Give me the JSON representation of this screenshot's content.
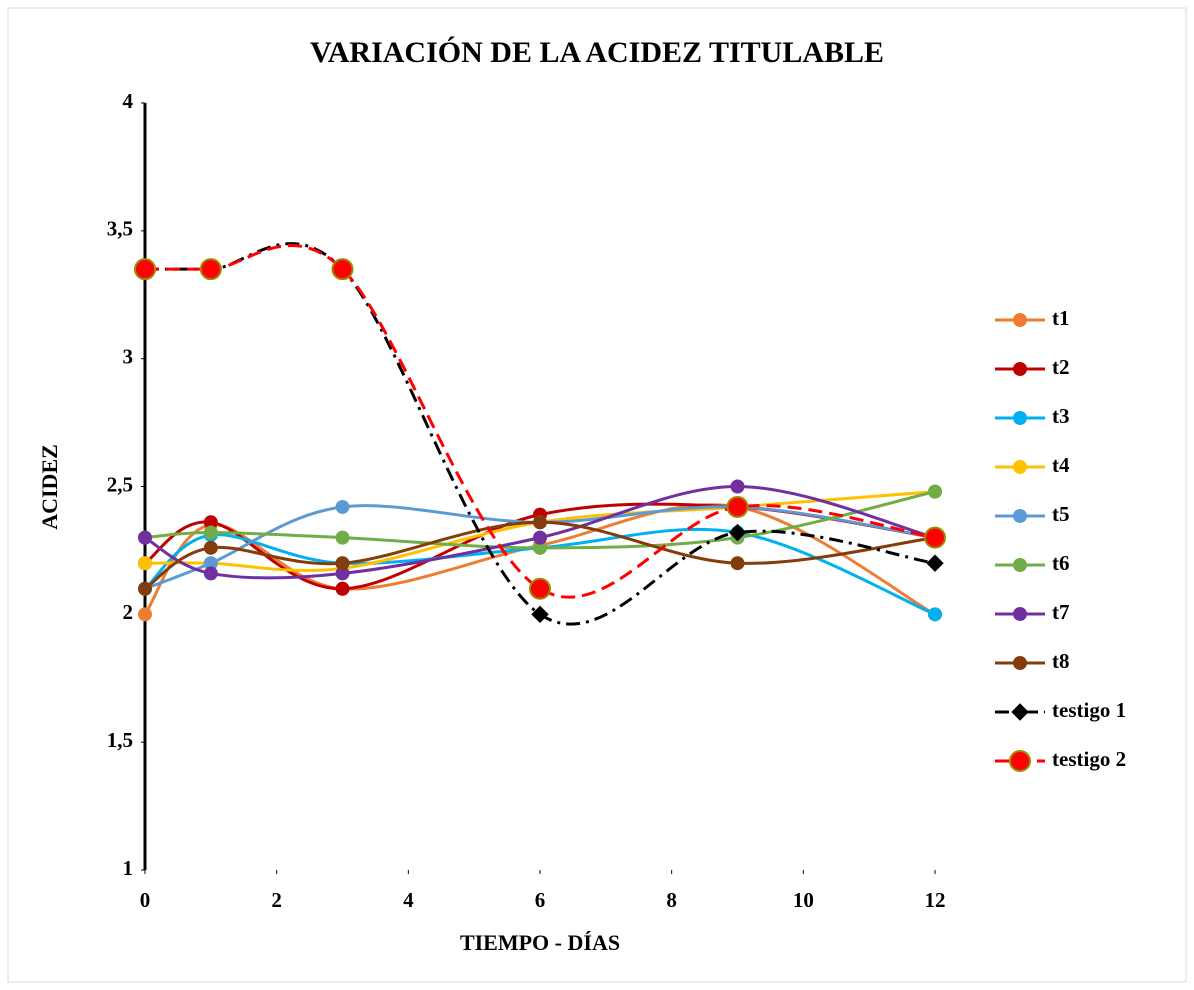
{
  "chart_data": {
    "type": "line",
    "title": "VARIACIÓN DE LA ACIDEZ TITULABLE",
    "xlabel": "TIEMPO - DÍAS",
    "ylabel": "ACIDEZ",
    "x": [
      0,
      1,
      3,
      6,
      9,
      12
    ],
    "xlim": [
      0,
      12
    ],
    "xticks": [
      0,
      2,
      4,
      6,
      8,
      10,
      12
    ],
    "ylim": [
      1,
      4
    ],
    "yticks": [
      1,
      {
        "value": 1.5,
        "label": "1,5"
      },
      2,
      {
        "value": 2.5,
        "label": "2,5"
      },
      3,
      {
        "value": 3.5,
        "label": "3,5"
      },
      4
    ],
    "smooth": true,
    "legend": "right",
    "series": [
      {
        "name": "t1",
        "color": "#ED7D31",
        "marker": "circle",
        "dash": "solid",
        "values": [
          2.0,
          2.35,
          2.1,
          2.27,
          2.42,
          2.0
        ]
      },
      {
        "name": "t2",
        "color": "#C00000",
        "marker": "circle",
        "dash": "solid",
        "values": [
          2.2,
          2.36,
          2.1,
          2.39,
          2.42,
          2.3
        ]
      },
      {
        "name": "t3",
        "color": "#00B0F0",
        "marker": "circle",
        "dash": "solid",
        "values": [
          2.1,
          2.31,
          2.2,
          2.26,
          2.32,
          2.0
        ]
      },
      {
        "name": "t4",
        "color": "#FFC000",
        "marker": "circle",
        "dash": "solid",
        "values": [
          2.2,
          2.2,
          2.18,
          2.36,
          2.42,
          2.48
        ]
      },
      {
        "name": "t5",
        "color": "#5B9BD5",
        "marker": "circle",
        "dash": "solid",
        "values": [
          2.1,
          2.2,
          2.42,
          2.36,
          2.42,
          2.3
        ]
      },
      {
        "name": "t6",
        "color": "#70AD47",
        "marker": "circle",
        "dash": "solid",
        "values": [
          2.3,
          2.32,
          2.3,
          2.26,
          2.3,
          2.48
        ]
      },
      {
        "name": "t7",
        "color": "#7030A0",
        "marker": "circle",
        "dash": "solid",
        "values": [
          2.3,
          2.16,
          2.16,
          2.3,
          2.5,
          2.3
        ]
      },
      {
        "name": "t8",
        "color": "#843C0C",
        "marker": "circle",
        "dash": "solid",
        "values": [
          2.1,
          2.26,
          2.2,
          2.36,
          2.2,
          2.3
        ]
      },
      {
        "name": "testigo 1",
        "color": "#000000",
        "marker": "diamond",
        "dash": "dashdot",
        "values": [
          3.35,
          3.35,
          3.35,
          2.0,
          2.32,
          2.2
        ]
      },
      {
        "name": "testigo 2",
        "color": "#FF0000",
        "marker": "circle",
        "marker_edge": "#9C8B00",
        "dash": "dash",
        "values": [
          3.35,
          3.35,
          3.35,
          2.1,
          2.42,
          2.3
        ]
      }
    ]
  }
}
